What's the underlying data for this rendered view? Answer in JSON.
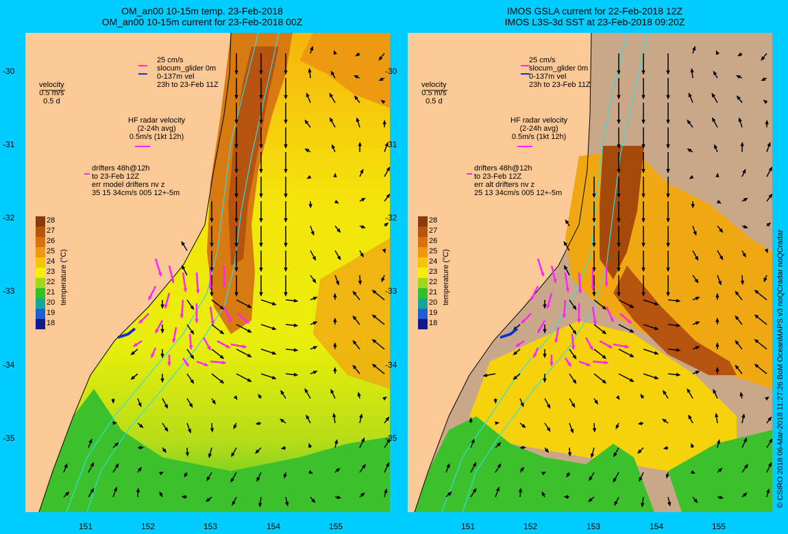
{
  "left_panel": {
    "title_line1": "OM_an00 10-15m temp. 23-Feb-2018",
    "title_line2": "OM_an00 10-15m current for 23-Feb-2018 00Z",
    "legend_glider": [
      "25 cm/s",
      "slocum_glider 0m",
      "0-137m vel",
      "23h to 23-Feb 11Z"
    ],
    "legend_velocity": [
      "velocity",
      "0.5 m/s",
      "0.5 d"
    ],
    "legend_hf": [
      "HF radar velocity",
      "(2-24h avg)",
      "0.5m/s (1kt 12h)"
    ],
    "legend_drifters": [
      "drifters 48h@12h",
      "to 23-Feb 12Z",
      "err model drifters nv z",
      "35 15 34cm/s 005 12+-5m"
    ]
  },
  "right_panel": {
    "title_line1": "IMOS GSLA current for 22-Feb-2018 12Z",
    "title_line2": "IMOS L3S-3d SST at 23-Feb-2018 09:20Z",
    "legend_glider": [
      "25 cm/s",
      "slocum_glider 0m",
      "0-137m vel",
      "23h to 23-Feb 11Z"
    ],
    "legend_velocity": [
      "velocity",
      "0.5 m/s",
      "0.5 d"
    ],
    "legend_hf": [
      "HF radar velocity",
      "(2-24h avg)",
      "0.5m/s (1kt 12h)"
    ],
    "legend_drifters": [
      "drifters 48h@12h",
      "to 23-Feb 12Z",
      "err alt drifters nv z",
      "25 13 34cm/s 005 12+-5m"
    ]
  },
  "axes": {
    "lat_ticks": [
      "-30",
      "-31",
      "-32",
      "-33",
      "-34",
      "-35"
    ],
    "lon_ticks": [
      "151",
      "152",
      "153",
      "154",
      "155"
    ]
  },
  "colorbar": {
    "title": "temperature (°C)",
    "labels": [
      "28",
      "27",
      "26",
      "25",
      "24",
      "23",
      "22",
      "21",
      "20",
      "19",
      "18"
    ],
    "colors": [
      "#8b3a0a",
      "#b5530f",
      "#d8720e",
      "#ee9a10",
      "#f6c40c",
      "#f5ee0b",
      "#9cd81e",
      "#2fc02a",
      "#16a59a",
      "#1f5fd2",
      "#101a8a"
    ]
  },
  "colors": {
    "background": "#00ccff",
    "land": "#fac996",
    "vector": "#000000",
    "hf_radar": "#ff22ff",
    "glider": "#1133cc",
    "isobath": "#33dddd",
    "missing_data": "#c9a88a"
  },
  "credit": "© CSIRO 2018  06-Mar-2018 11:27:26 BoM OceanMAPS v3 noQCradar noQCradar"
}
